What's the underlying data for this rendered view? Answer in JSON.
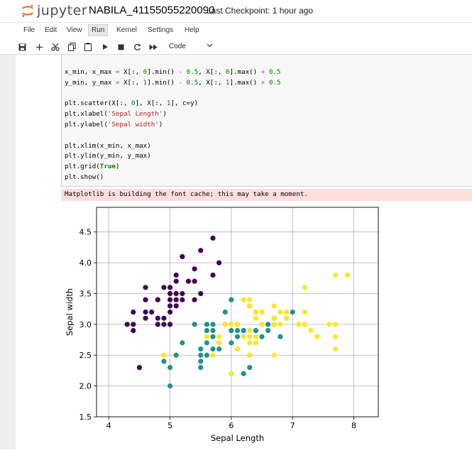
{
  "header": {
    "logo_text": "jupyter",
    "notebook_name": "NABILA_41155055220090",
    "checkpoint": "Last Checkpoint: 1 hour ago"
  },
  "menu": [
    "File",
    "Edit",
    "View",
    "Run",
    "Kernel",
    "Settings",
    "Help"
  ],
  "menu_active": "Run",
  "toolbar": {
    "cell_type": "Code",
    "icons": [
      "save-icon",
      "add-icon",
      "cut-icon",
      "copy-icon",
      "paste-icon",
      "run-icon",
      "stop-icon",
      "restart-icon",
      "fast-forward-icon"
    ]
  },
  "code_cell": {
    "lines": [
      "x_min, x_max = X[:, 0].min() - 0.5, X[:, 0].max() + 0.5",
      "y_min, y_max = X[:, 1].min() - 0.5, X[:, 1].max() + 0.5",
      "",
      "plt.scatter(X[:, 0], X[:, 1], c=y)",
      "plt.xlabel('Sepal Length')",
      "plt.ylabel('Sepal width')",
      "",
      "plt.xlim(x_min, x_max)",
      "plt.ylim(y_min, y_max)",
      "plt.grid(True)",
      "plt.show()"
    ]
  },
  "stderr_output": "Matplotlib is building the font cache; this may take a moment.",
  "chart_data": {
    "type": "scatter",
    "xlabel": "Sepal Length",
    "ylabel": "Sepal width",
    "xlim": [
      3.8,
      8.4
    ],
    "ylim": [
      1.5,
      4.9
    ],
    "xticks": [
      "4",
      "5",
      "6",
      "7",
      "8"
    ],
    "yticks": [
      "1.5",
      "2.0",
      "2.5",
      "3.0",
      "3.5",
      "4.0",
      "4.5"
    ],
    "grid": true,
    "colors": [
      "#440154",
      "#21918c",
      "#fde725"
    ],
    "series": [
      {
        "values": [
          [
            4.3,
            3.0
          ],
          [
            4.4,
            2.9
          ],
          [
            4.4,
            3.0
          ],
          [
            4.4,
            3.2
          ],
          [
            4.5,
            2.3
          ],
          [
            4.6,
            3.1
          ],
          [
            4.6,
            3.2
          ],
          [
            4.6,
            3.4
          ],
          [
            4.6,
            3.6
          ],
          [
            4.7,
            3.2
          ],
          [
            4.8,
            3.0
          ],
          [
            4.8,
            3.1
          ],
          [
            4.8,
            3.4
          ],
          [
            4.9,
            3.0
          ],
          [
            4.9,
            3.1
          ],
          [
            4.9,
            3.6
          ],
          [
            5.0,
            3.0
          ],
          [
            5.0,
            3.2
          ],
          [
            5.0,
            3.3
          ],
          [
            5.0,
            3.4
          ],
          [
            5.0,
            3.5
          ],
          [
            5.0,
            3.6
          ],
          [
            5.1,
            3.3
          ],
          [
            5.1,
            3.4
          ],
          [
            5.1,
            3.5
          ],
          [
            5.1,
            3.7
          ],
          [
            5.1,
            3.8
          ],
          [
            5.2,
            3.4
          ],
          [
            5.2,
            3.5
          ],
          [
            5.2,
            4.1
          ],
          [
            5.3,
            3.7
          ],
          [
            5.4,
            3.4
          ],
          [
            5.4,
            3.7
          ],
          [
            5.4,
            3.9
          ],
          [
            5.5,
            3.5
          ],
          [
            5.5,
            4.2
          ],
          [
            5.7,
            3.8
          ],
          [
            5.7,
            4.4
          ],
          [
            5.8,
            4.0
          ]
        ]
      },
      {
        "values": [
          [
            4.9,
            2.4
          ],
          [
            5.0,
            2.0
          ],
          [
            5.0,
            2.3
          ],
          [
            5.1,
            2.5
          ],
          [
            5.2,
            2.7
          ],
          [
            5.4,
            3.0
          ],
          [
            5.5,
            2.3
          ],
          [
            5.5,
            2.4
          ],
          [
            5.5,
            2.5
          ],
          [
            5.5,
            2.6
          ],
          [
            5.6,
            2.5
          ],
          [
            5.6,
            2.7
          ],
          [
            5.6,
            2.9
          ],
          [
            5.6,
            3.0
          ],
          [
            5.7,
            2.6
          ],
          [
            5.7,
            2.8
          ],
          [
            5.7,
            2.9
          ],
          [
            5.7,
            3.0
          ],
          [
            5.8,
            2.6
          ],
          [
            5.8,
            2.7
          ],
          [
            5.9,
            3.0
          ],
          [
            5.9,
            3.2
          ],
          [
            6.0,
            2.2
          ],
          [
            6.0,
            2.7
          ],
          [
            6.0,
            2.9
          ],
          [
            6.0,
            3.4
          ],
          [
            6.1,
            2.8
          ],
          [
            6.1,
            2.9
          ],
          [
            6.1,
            3.0
          ],
          [
            6.2,
            2.2
          ],
          [
            6.2,
            2.9
          ],
          [
            6.3,
            2.3
          ],
          [
            6.3,
            2.5
          ],
          [
            6.3,
            3.3
          ],
          [
            6.4,
            2.9
          ],
          [
            6.4,
            3.2
          ],
          [
            6.5,
            2.8
          ],
          [
            6.6,
            2.9
          ],
          [
            6.6,
            3.0
          ],
          [
            6.7,
            3.0
          ],
          [
            6.7,
            3.1
          ],
          [
            6.8,
            2.8
          ],
          [
            6.9,
            3.1
          ],
          [
            7.0,
            3.2
          ]
        ]
      },
      {
        "values": [
          [
            4.9,
            2.5
          ],
          [
            5.6,
            2.8
          ],
          [
            5.7,
            2.5
          ],
          [
            5.8,
            2.7
          ],
          [
            5.8,
            2.8
          ],
          [
            5.9,
            3.0
          ],
          [
            6.0,
            2.2
          ],
          [
            6.0,
            3.0
          ],
          [
            6.1,
            2.6
          ],
          [
            6.1,
            3.0
          ],
          [
            6.2,
            2.8
          ],
          [
            6.2,
            3.4
          ],
          [
            6.3,
            2.5
          ],
          [
            6.3,
            2.7
          ],
          [
            6.3,
            2.8
          ],
          [
            6.3,
            2.9
          ],
          [
            6.3,
            3.3
          ],
          [
            6.3,
            3.4
          ],
          [
            6.4,
            2.7
          ],
          [
            6.4,
            2.8
          ],
          [
            6.4,
            3.1
          ],
          [
            6.4,
            3.2
          ],
          [
            6.5,
            3.0
          ],
          [
            6.5,
            3.2
          ],
          [
            6.7,
            2.5
          ],
          [
            6.7,
            3.0
          ],
          [
            6.7,
            3.1
          ],
          [
            6.7,
            3.3
          ],
          [
            6.8,
            3.0
          ],
          [
            6.8,
            3.2
          ],
          [
            6.9,
            3.1
          ],
          [
            6.9,
            3.2
          ],
          [
            7.1,
            3.0
          ],
          [
            7.2,
            3.0
          ],
          [
            7.2,
            3.2
          ],
          [
            7.2,
            3.6
          ],
          [
            7.3,
            2.9
          ],
          [
            7.4,
            2.8
          ],
          [
            7.6,
            3.0
          ],
          [
            7.7,
            2.6
          ],
          [
            7.7,
            2.8
          ],
          [
            7.7,
            3.0
          ],
          [
            7.7,
            3.8
          ],
          [
            7.9,
            3.8
          ]
        ]
      }
    ]
  }
}
